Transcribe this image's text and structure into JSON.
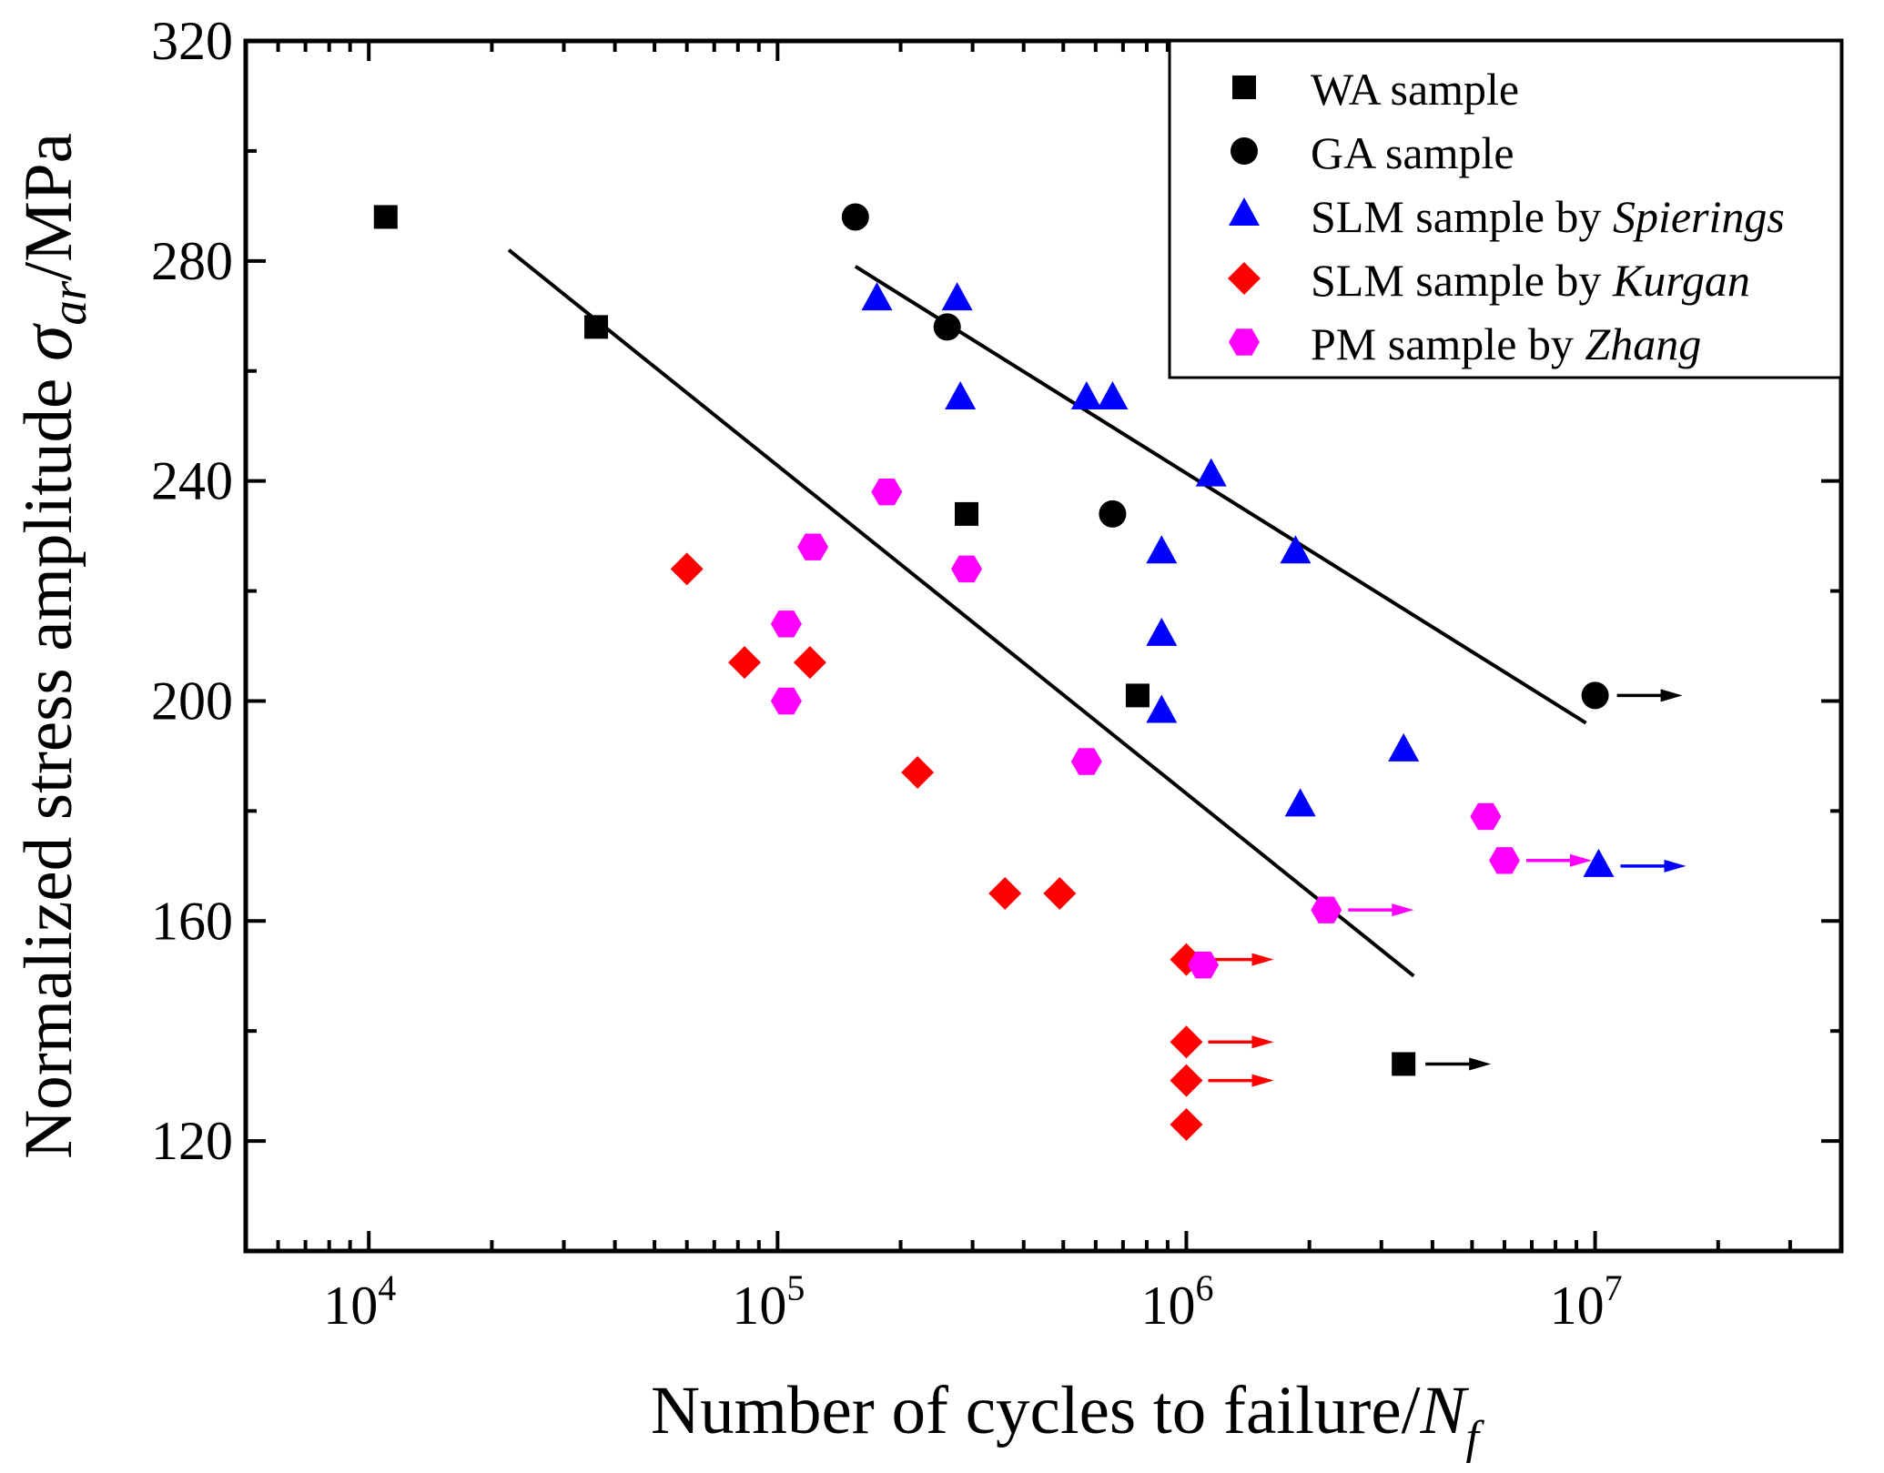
{
  "chart_data": {
    "type": "scatter",
    "title": "",
    "xlabel": "Number of cycles to failure/",
    "xlabel_symbol": "N",
    "xlabel_subscript": "f",
    "ylabel": "Normalized stress amplitude ",
    "ylabel_symbol": "σ",
    "ylabel_subscript": "ar",
    "ylabel_unit": "/MPa",
    "x_scale": "log",
    "xlim": [
      5000,
      40000000
    ],
    "ylim": [
      100,
      320
    ],
    "x_ticks": [
      {
        "value": 10000,
        "base": "10",
        "exp": "4"
      },
      {
        "value": 100000,
        "base": "10",
        "exp": "5"
      },
      {
        "value": 1000000,
        "base": "10",
        "exp": "6"
      },
      {
        "value": 10000000,
        "base": "10",
        "exp": "7"
      }
    ],
    "y_ticks": [
      120,
      160,
      200,
      240,
      280,
      320
    ],
    "grid": false,
    "legend_position": "top-right",
    "series": [
      {
        "name": "WA sample",
        "legend_plain": "WA sample",
        "legend_italic": "",
        "marker": "square",
        "color": "#000000",
        "points": [
          [
            11000,
            288
          ],
          [
            36000,
            268
          ],
          [
            290000,
            234
          ],
          [
            760000,
            201
          ],
          [
            3400000,
            134
          ]
        ],
        "runouts": [
          3400000
        ]
      },
      {
        "name": "GA sample",
        "legend_plain": "GA sample",
        "legend_italic": "",
        "marker": "circle",
        "color": "#000000",
        "points": [
          [
            155000,
            288
          ],
          [
            260000,
            268
          ],
          [
            660000,
            234
          ],
          [
            10000000,
            201
          ]
        ],
        "runouts": [
          10000000
        ]
      },
      {
        "name": "SLM sample by Spierings",
        "legend_plain": "SLM sample by ",
        "legend_italic": "Spierings",
        "marker": "triangle",
        "color": "#0000ff",
        "points": [
          [
            175000,
            273
          ],
          [
            275000,
            273
          ],
          [
            280000,
            255
          ],
          [
            570000,
            255
          ],
          [
            660000,
            255
          ],
          [
            1150000,
            241
          ],
          [
            870000,
            227
          ],
          [
            1850000,
            227
          ],
          [
            870000,
            212
          ],
          [
            870000,
            198
          ],
          [
            1900000,
            181
          ],
          [
            3400000,
            191
          ],
          [
            10200000,
            170
          ]
        ],
        "runouts": [
          10200000
        ]
      },
      {
        "name": "SLM sample by Kurgan",
        "legend_plain": "SLM sample by ",
        "legend_italic": "Kurgan",
        "marker": "diamond",
        "color": "#ff0000",
        "points": [
          [
            60000,
            224
          ],
          [
            83000,
            207
          ],
          [
            120000,
            207
          ],
          [
            220000,
            187
          ],
          [
            360000,
            165
          ],
          [
            490000,
            165
          ],
          [
            1000000,
            153
          ],
          [
            1000000,
            138
          ],
          [
            1000000,
            131
          ],
          [
            1000000,
            123
          ]
        ],
        "runouts": [
          1000000,
          1000000,
          1000000
        ]
      },
      {
        "name": "PM sample by Zhang",
        "legend_plain": "PM sample by ",
        "legend_italic": "Zhang",
        "marker": "hexagon",
        "color": "#ff00ff",
        "points": [
          [
            185000,
            238
          ],
          [
            122000,
            228
          ],
          [
            290000,
            224
          ],
          [
            105000,
            214
          ],
          [
            105000,
            200
          ],
          [
            570000,
            189
          ],
          [
            5400000,
            179
          ],
          [
            6000000,
            171
          ],
          [
            2200000,
            162
          ],
          [
            1100000,
            152
          ]
        ],
        "runouts": [
          6000000,
          2200000
        ]
      }
    ],
    "fit_lines": [
      {
        "name": "WA fit",
        "color": "#000000",
        "from": [
          22000,
          282
        ],
        "to": [
          3600000,
          150
        ]
      },
      {
        "name": "GA fit",
        "color": "#000000",
        "from": [
          155000,
          279
        ],
        "to": [
          9500000,
          196
        ]
      }
    ]
  }
}
